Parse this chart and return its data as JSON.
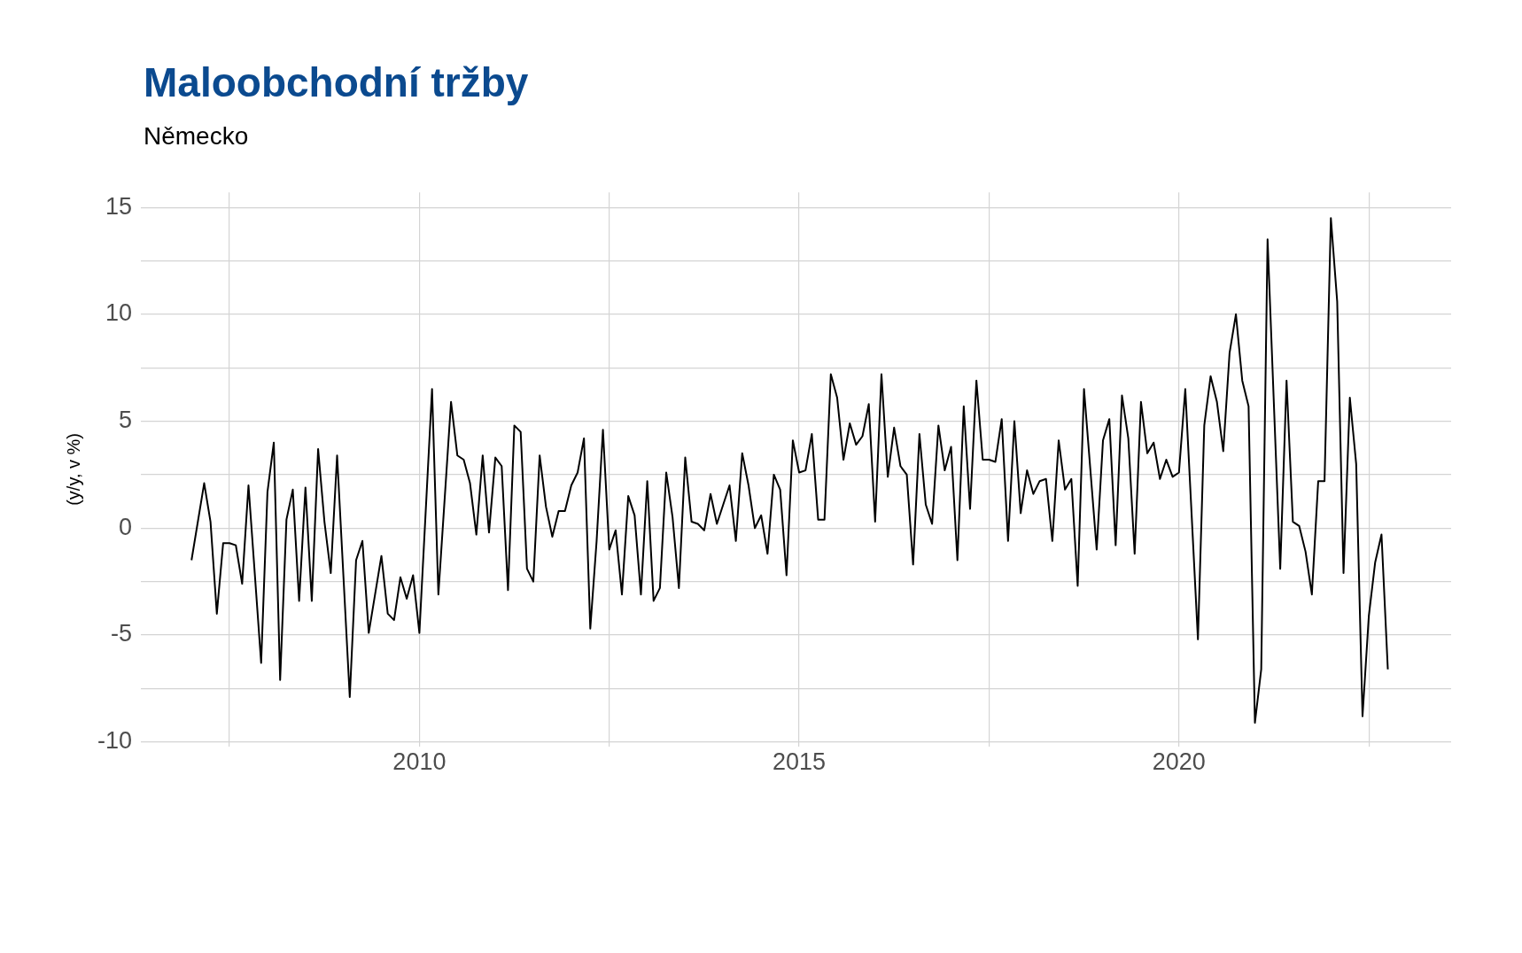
{
  "chart_data": {
    "type": "line",
    "title": "Maloobchodní tržby",
    "subtitle": "Německo",
    "ylabel": "(y/y, v %)",
    "x": [
      "2007-01",
      "2007-03",
      "2007-04",
      "2007-05",
      "2007-06",
      "2007-07",
      "2007-08",
      "2007-09",
      "2007-10",
      "2007-12",
      "2008-01",
      "2008-02",
      "2008-03",
      "2008-04",
      "2008-05",
      "2008-06",
      "2008-07",
      "2008-08",
      "2008-09",
      "2008-10",
      "2008-11",
      "2008-12",
      "2009-02",
      "2009-03",
      "2009-04",
      "2009-05",
      "2009-07",
      "2009-08",
      "2009-09",
      "2009-10",
      "2009-11",
      "2009-12",
      "2010-01",
      "2010-03",
      "2010-04",
      "2010-06",
      "2010-07",
      "2010-08",
      "2010-09",
      "2010-10",
      "2010-11",
      "2010-12",
      "2011-01",
      "2011-02",
      "2011-03",
      "2011-04",
      "2011-05",
      "2011-06",
      "2011-07",
      "2011-08",
      "2011-09",
      "2011-10",
      "2011-11",
      "2011-12",
      "2012-01",
      "2012-02",
      "2012-03",
      "2012-04",
      "2012-05",
      "2012-06",
      "2012-07",
      "2012-08",
      "2012-09",
      "2012-10",
      "2012-11",
      "2012-12",
      "2013-01",
      "2013-02",
      "2013-03",
      "2013-04",
      "2013-05",
      "2013-06",
      "2013-07",
      "2013-08",
      "2013-09",
      "2013-10",
      "2013-11",
      "2013-12",
      "2014-01",
      "2014-02",
      "2014-03",
      "2014-04",
      "2014-05",
      "2014-06",
      "2014-07",
      "2014-08",
      "2014-09",
      "2014-10",
      "2014-11",
      "2014-12",
      "2015-01",
      "2015-02",
      "2015-03",
      "2015-04",
      "2015-05",
      "2015-06",
      "2015-07",
      "2015-08",
      "2015-09",
      "2015-10",
      "2015-11",
      "2015-12",
      "2016-01",
      "2016-02",
      "2016-03",
      "2016-04",
      "2016-05",
      "2016-06",
      "2016-07",
      "2016-08",
      "2016-09",
      "2016-10",
      "2016-11",
      "2016-12",
      "2017-01",
      "2017-02",
      "2017-03",
      "2017-04",
      "2017-05",
      "2017-06",
      "2017-07",
      "2017-08",
      "2017-09",
      "2017-10",
      "2017-11",
      "2017-12",
      "2018-01",
      "2018-02",
      "2018-03",
      "2018-04",
      "2018-05",
      "2018-06",
      "2018-07",
      "2018-08",
      "2018-09",
      "2018-10",
      "2018-12",
      "2019-01",
      "2019-02",
      "2019-03",
      "2019-04",
      "2019-05",
      "2019-06",
      "2019-07",
      "2019-08",
      "2019-09",
      "2019-10",
      "2019-11",
      "2019-12",
      "2020-01",
      "2020-02",
      "2020-04",
      "2020-05",
      "2020-06",
      "2020-07",
      "2020-08",
      "2020-09",
      "2020-10",
      "2020-11",
      "2020-12",
      "2021-01",
      "2021-02",
      "2021-03",
      "2021-05",
      "2021-06",
      "2021-07",
      "2021-08",
      "2021-09",
      "2021-10",
      "2021-11",
      "2021-12",
      "2022-01",
      "2022-02",
      "2022-03",
      "2022-04",
      "2022-05",
      "2022-06",
      "2022-07",
      "2022-08",
      "2022-09",
      "2022-10"
    ],
    "series": [
      {
        "color": "#000000",
        "values": [
          -1.5,
          2.1,
          0.3,
          -4.0,
          -0.7,
          -0.7,
          -0.8,
          -2.6,
          2.0,
          -6.3,
          1.7,
          4.0,
          -7.1,
          0.4,
          1.8,
          -3.4,
          1.9,
          -3.4,
          3.7,
          0.3,
          -2.1,
          3.4,
          -7.9,
          -1.5,
          -0.6,
          -4.9,
          -1.3,
          -4.0,
          -4.3,
          -2.3,
          -3.3,
          -2.2,
          -4.9,
          6.5,
          -3.1,
          5.9,
          3.4,
          3.2,
          2.1,
          -0.3,
          3.4,
          -0.2,
          3.3,
          2.9,
          -2.9,
          4.8,
          4.5,
          -1.9,
          -2.5,
          3.4,
          1.0,
          -0.4,
          0.8,
          0.8,
          2.0,
          2.6,
          4.2,
          -4.7,
          -0.6,
          4.6,
          -1.0,
          -0.1,
          -3.1,
          1.5,
          0.6,
          -3.1,
          2.2,
          -3.4,
          -2.8,
          2.6,
          0.5,
          -2.8,
          3.3,
          0.3,
          0.2,
          -0.1,
          1.6,
          0.2,
          1.1,
          2.0,
          -0.6,
          3.5,
          2.0,
          0.0,
          0.6,
          -1.2,
          2.5,
          1.8,
          -2.2,
          4.1,
          2.6,
          2.7,
          4.4,
          0.4,
          0.4,
          7.2,
          6.1,
          3.2,
          4.9,
          3.9,
          4.3,
          5.8,
          0.3,
          7.2,
          2.4,
          4.7,
          2.9,
          2.5,
          -1.7,
          4.4,
          1.1,
          0.2,
          4.8,
          2.7,
          3.8,
          -1.5,
          5.7,
          0.9,
          6.9,
          3.2,
          3.2,
          3.1,
          5.1,
          -0.6,
          5.0,
          0.7,
          2.7,
          1.6,
          2.2,
          2.3,
          -0.6,
          4.1,
          1.8,
          2.3,
          -2.7,
          6.5,
          -1.0,
          4.1,
          5.1,
          -0.8,
          6.2,
          4.2,
          -1.2,
          5.9,
          3.5,
          4.0,
          2.3,
          3.2,
          2.4,
          2.6,
          6.5,
          -5.2,
          4.8,
          7.1,
          5.9,
          3.6,
          8.2,
          10.0,
          6.9,
          5.7,
          -9.1,
          -6.6,
          13.5,
          -1.9,
          6.9,
          0.3,
          0.1,
          -1.1,
          -3.1,
          2.2,
          2.2,
          14.5,
          10.6,
          -2.1,
          6.1,
          3.0,
          -8.8,
          -4.1,
          -1.6,
          -0.3,
          -6.6
        ]
      }
    ],
    "xlim": [
      "2006-05",
      "2023-08"
    ],
    "xticks": [
      {
        "value": "2007-07",
        "label": null
      },
      "2010",
      {
        "value": "2012-07",
        "label": null
      },
      "2015",
      {
        "value": "2017-07",
        "label": null
      },
      "2020",
      {
        "value": "2022-07",
        "label": null
      }
    ],
    "ylim": [
      -10.2,
      15.7
    ],
    "yticks": [
      -10,
      {
        "value": -7.5,
        "label": null
      },
      -5,
      {
        "value": -2.5,
        "label": null
      },
      0,
      {
        "value": 2.5,
        "label": null
      },
      5,
      {
        "value": 7.5,
        "label": null
      },
      10,
      {
        "value": 12.5,
        "label": null
      },
      15
    ],
    "grid": true,
    "legend": false,
    "marker": "none",
    "line_style": "solid"
  }
}
